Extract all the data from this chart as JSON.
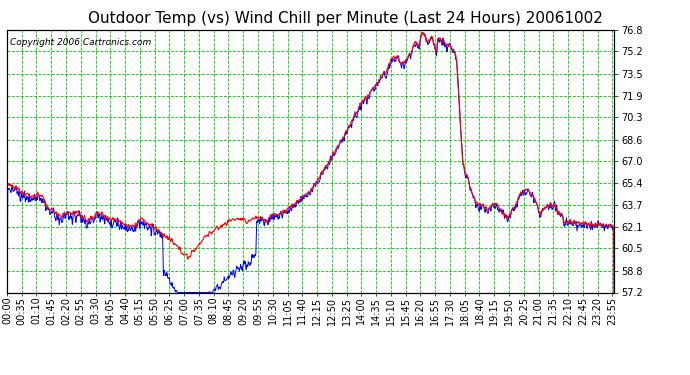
{
  "title": "Outdoor Temp (vs) Wind Chill per Minute (Last 24 Hours) 20061002",
  "copyright_text": "Copyright 2006 Cartronics.com",
  "ylim": [
    57.2,
    76.8
  ],
  "yticks": [
    57.2,
    58.8,
    60.5,
    62.1,
    63.7,
    65.4,
    67.0,
    68.6,
    70.3,
    71.9,
    73.5,
    75.2,
    76.8
  ],
  "bg_color": "#ffffff",
  "plot_bg_color": "#ffffff",
  "grid_color": "#00cc00",
  "line_color_red": "#ff0000",
  "line_color_blue": "#0000ff",
  "title_fontsize": 11,
  "copyright_fontsize": 6.5,
  "tick_fontsize": 7,
  "xtick_interval_min": 35,
  "n_points": 1440
}
